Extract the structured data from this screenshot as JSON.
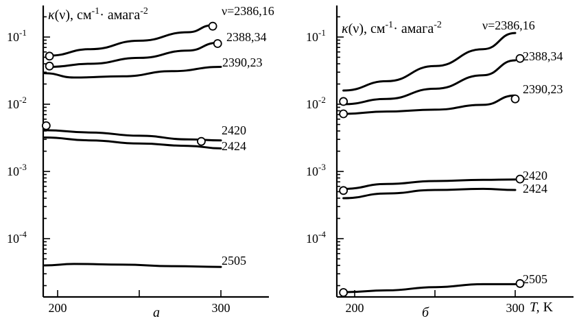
{
  "chart_data": [
    {
      "type": "line",
      "panel_label": "а",
      "title": "κ(ν), см⁻¹· амага⁻²",
      "title_parts": {
        "prefix": "κ(ν), см",
        "sup1": "-1",
        "mid": "· амага",
        "sup2": "-2"
      },
      "xlabel": "",
      "xlim": [
        190,
        300
      ],
      "xticks": [
        200,
        250,
        300
      ],
      "xtick_labels": [
        "200",
        "",
        "300"
      ],
      "ylog": true,
      "ylim": [
        2e-05,
        0.2
      ],
      "yticks": [
        0.1,
        0.01,
        0.001,
        0.0001
      ],
      "ytick_labels": [
        {
          "base": "10",
          "exp": "-1"
        },
        {
          "base": "10",
          "exp": "-2"
        },
        {
          "base": "10",
          "exp": "-3"
        },
        {
          "base": "10",
          "exp": "-4"
        }
      ],
      "series": [
        {
          "name": "ν=2386,16",
          "x": [
            195,
            220,
            250,
            280,
            295
          ],
          "y": [
            0.053,
            0.066,
            0.088,
            0.118,
            0.15
          ],
          "markers": [
            [
              295,
              0.145
            ]
          ]
        },
        {
          "name": "2388,34",
          "x": [
            195,
            220,
            250,
            280,
            298
          ],
          "y": [
            0.036,
            0.04,
            0.049,
            0.063,
            0.082
          ],
          "markers": [
            [
              195,
              0.052
            ],
            [
              195,
              0.037
            ],
            [
              298,
              0.08
            ]
          ]
        },
        {
          "name": "2390,23",
          "x": [
            192,
            210,
            240,
            270,
            300
          ],
          "y": [
            0.029,
            0.025,
            0.026,
            0.031,
            0.036
          ],
          "markers": []
        },
        {
          "name": "2420",
          "x": [
            192,
            220,
            250,
            280,
            300
          ],
          "y": [
            0.0041,
            0.0038,
            0.0034,
            0.003,
            0.0029
          ],
          "markers": [
            [
              193,
              0.0048
            ],
            [
              288,
              0.0028
            ]
          ]
        },
        {
          "name": "2424",
          "x": [
            192,
            220,
            250,
            280,
            300
          ],
          "y": [
            0.0032,
            0.0029,
            0.0026,
            0.0024,
            0.0022
          ],
          "markers": []
        },
        {
          "name": "2505",
          "x": [
            192,
            210,
            240,
            270,
            300
          ],
          "y": [
            4e-05,
            4.2e-05,
            4.1e-05,
            3.9e-05,
            3.8e-05
          ],
          "markers": []
        }
      ]
    },
    {
      "type": "line",
      "panel_label": "б",
      "title": "κ(ν), см⁻¹· амага⁻²",
      "title_parts": {
        "prefix": "κ(ν), см",
        "sup1": "-1",
        "mid": "· амага",
        "sup2": "-2"
      },
      "xlabel": "T, K",
      "xlim": [
        190,
        315
      ],
      "xticks": [
        200,
        250,
        300
      ],
      "xtick_labels": [
        "200",
        "",
        "300"
      ],
      "ylog": true,
      "ylim": [
        1e-05,
        0.15
      ],
      "yticks": [
        0.1,
        0.01,
        0.001,
        0.0001
      ],
      "ytick_labels": [
        {
          "base": "10",
          "exp": "-1"
        },
        {
          "base": "10",
          "exp": "-2"
        },
        {
          "base": "10",
          "exp": "-3"
        },
        {
          "base": "10",
          "exp": "-4"
        }
      ],
      "series": [
        {
          "name": "ν=2386,16",
          "x": [
            193,
            220,
            250,
            280,
            300
          ],
          "y": [
            0.016,
            0.022,
            0.037,
            0.066,
            0.115
          ],
          "markers": []
        },
        {
          "name": "2388,34",
          "x": [
            193,
            220,
            250,
            280,
            300
          ],
          "y": [
            0.01,
            0.012,
            0.017,
            0.027,
            0.045
          ],
          "markers": [
            [
              193,
              0.011
            ],
            [
              303,
              0.048
            ]
          ]
        },
        {
          "name": "2390,23",
          "x": [
            193,
            220,
            250,
            280,
            300
          ],
          "y": [
            0.0072,
            0.0078,
            0.0083,
            0.0098,
            0.0135
          ],
          "markers": [
            [
              193,
              0.0072
            ],
            [
              300,
              0.012
            ]
          ]
        },
        {
          "name": "2420",
          "x": [
            193,
            220,
            250,
            280,
            300
          ],
          "y": [
            0.00055,
            0.00065,
            0.00072,
            0.00075,
            0.00076
          ],
          "markers": [
            [
              193,
              0.00052
            ],
            [
              303,
              0.00077
            ]
          ]
        },
        {
          "name": "2424",
          "x": [
            193,
            220,
            250,
            280,
            300
          ],
          "y": [
            0.0004,
            0.00047,
            0.00053,
            0.00055,
            0.00053
          ],
          "markers": []
        },
        {
          "name": "2505",
          "x": [
            193,
            220,
            250,
            280,
            300
          ],
          "y": [
            1.6e-05,
            1.7e-05,
            1.9e-05,
            2.1e-05,
            2.1e-05
          ],
          "markers": [
            [
              193,
              1.58e-05
            ],
            [
              303,
              2.15e-05
            ]
          ]
        }
      ]
    }
  ]
}
